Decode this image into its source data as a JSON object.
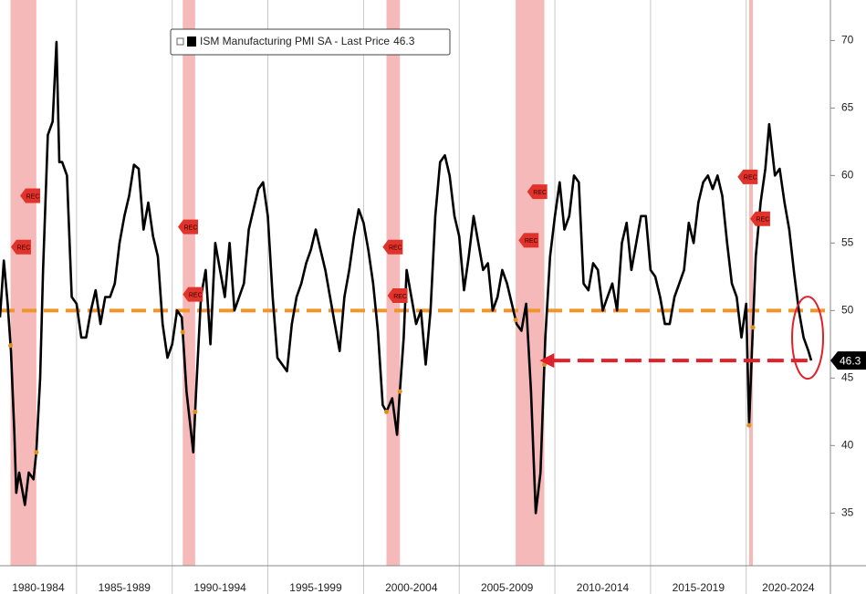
{
  "chart_data": {
    "type": "line",
    "legend_label": "ISM Manufacturing PMI SA - Last Price",
    "last_price": 46.3,
    "series": [
      {
        "name": "ISM Manufacturing PMI SA - Last Price",
        "color": "#000000",
        "x": [
          1981.0,
          1981.2,
          1981.4,
          1981.57,
          1981.75,
          1981.85,
          1982.0,
          1982.3,
          1982.5,
          1982.75,
          1982.9,
          1983.1,
          1983.25,
          1983.5,
          1983.75,
          1983.95,
          1984.1,
          1984.25,
          1984.5,
          1984.75,
          1985.0,
          1985.25,
          1985.5,
          1985.75,
          1986.0,
          1986.25,
          1986.5,
          1986.75,
          1987.0,
          1987.25,
          1987.5,
          1987.75,
          1988.0,
          1988.25,
          1988.5,
          1988.75,
          1989.0,
          1989.25,
          1989.5,
          1989.75,
          1990.0,
          1990.25,
          1990.5,
          1990.75,
          1991.1,
          1991.25,
          1991.5,
          1991.75,
          1992.0,
          1992.25,
          1992.5,
          1992.75,
          1993.0,
          1993.25,
          1993.5,
          1993.75,
          1994.0,
          1994.25,
          1994.5,
          1994.75,
          1995.0,
          1995.25,
          1995.5,
          1995.75,
          1996.0,
          1996.25,
          1996.5,
          1996.75,
          1997.0,
          1997.25,
          1997.5,
          1997.75,
          1998.0,
          1998.25,
          1998.5,
          1998.75,
          1999.0,
          1999.25,
          1999.5,
          1999.75,
          2000.0,
          2000.25,
          2000.5,
          2000.75,
          2001.0,
          2001.2,
          2001.5,
          2001.75,
          2001.9,
          2002.1,
          2002.25,
          2002.5,
          2002.75,
          2003.0,
          2003.25,
          2003.5,
          2003.75,
          2004.0,
          2004.25,
          2004.5,
          2004.75,
          2005.0,
          2005.25,
          2005.5,
          2005.75,
          2006.0,
          2006.25,
          2006.5,
          2006.75,
          2007.0,
          2007.25,
          2007.5,
          2007.75,
          2008.0,
          2008.25,
          2008.5,
          2008.75,
          2009.0,
          2009.25,
          2009.5,
          2009.75,
          2010.0,
          2010.25,
          2010.5,
          2010.75,
          2011.0,
          2011.25,
          2011.5,
          2011.75,
          2012.0,
          2012.25,
          2012.5,
          2012.75,
          2013.0,
          2013.25,
          2013.5,
          2013.75,
          2014.0,
          2014.25,
          2014.5,
          2014.75,
          2015.0,
          2015.25,
          2015.5,
          2015.75,
          2016.0,
          2016.25,
          2016.5,
          2016.75,
          2017.0,
          2017.25,
          2017.5,
          2017.75,
          2018.0,
          2018.25,
          2018.5,
          2018.75,
          2019.0,
          2019.25,
          2019.5,
          2019.75,
          2020.0,
          2020.15,
          2020.3,
          2020.5,
          2020.75,
          2021.0,
          2021.2,
          2021.5,
          2021.75,
          2022.0,
          2022.25,
          2022.5,
          2022.75,
          2023.0,
          2023.25,
          2023.4
        ],
        "values": [
          49.5,
          53.7,
          50.5,
          47,
          41,
          36.5,
          38,
          35.6,
          38,
          37.5,
          39.5,
          45,
          53,
          63,
          64,
          69.9,
          61,
          61,
          60,
          51,
          50.5,
          48,
          48,
          50,
          51.5,
          49,
          51,
          51,
          52,
          55,
          57,
          58.5,
          60.8,
          60.5,
          56,
          58,
          55.5,
          54,
          49,
          46.5,
          47.5,
          50,
          49.5,
          44,
          39.5,
          44,
          51,
          53,
          47.5,
          55,
          53,
          51,
          55,
          50,
          51,
          52,
          56,
          57.5,
          59,
          59.5,
          57,
          51,
          46.5,
          46,
          45.5,
          49,
          51,
          52,
          53.5,
          54.5,
          56,
          54.5,
          53,
          51,
          49,
          47,
          51,
          53,
          55.5,
          57.5,
          56.5,
          54.5,
          52,
          48.5,
          43,
          42.5,
          43.5,
          40.8,
          44,
          48,
          53,
          51,
          49,
          50,
          46,
          50,
          57,
          61,
          61.5,
          60,
          57,
          55.5,
          51.5,
          54,
          57,
          55,
          53,
          53.5,
          50,
          51,
          53,
          52,
          50.5,
          49,
          48.5,
          50.5,
          44,
          35,
          38,
          48,
          54,
          57,
          59.5,
          56,
          57,
          60,
          59.5,
          52,
          51.5,
          53.5,
          53,
          50,
          51,
          52,
          50,
          55,
          56.5,
          53,
          55,
          57,
          57,
          53,
          52.5,
          51,
          49,
          49,
          51,
          52,
          53,
          56.5,
          55,
          58,
          59.5,
          60,
          59,
          60,
          58.5,
          55,
          52,
          51,
          48,
          50.5,
          41.5,
          47,
          54,
          58,
          60.5,
          63.8,
          60,
          60.5,
          58,
          56,
          52.8,
          50,
          48,
          47,
          46.3
        ]
      }
    ],
    "xlim": [
      1981.0,
      2024.4
    ],
    "xticks": [
      1985,
      1990,
      1995,
      2000,
      2005,
      2010,
      2015,
      2020
    ],
    "x_period_labels": [
      "1980-1984",
      "1985-1989",
      "1990-1994",
      "1995-1999",
      "2000-2004",
      "2005-2009",
      "2010-2014",
      "2015-2019",
      "2020-2024"
    ],
    "ylim": [
      31.1,
      73.0
    ],
    "yticks": [
      35,
      40,
      45,
      50,
      55,
      60,
      65,
      70
    ],
    "reference_line": {
      "value": 50,
      "color": "#f0952a"
    },
    "arrow": {
      "y": 46.3,
      "x_from": 2023.2,
      "x_to": 2009.2,
      "color": "#e0202a"
    },
    "recessions": [
      {
        "start": 1981.55,
        "end": 1982.9
      },
      {
        "start": 1990.55,
        "end": 1991.2
      },
      {
        "start": 2001.2,
        "end": 2001.9
      },
      {
        "start": 2007.95,
        "end": 2009.45
      },
      {
        "start": 2020.15,
        "end": 2020.35
      }
    ],
    "recession_color": "#f6b9b9",
    "rec_label": "REC",
    "rec_tags": [
      {
        "x": 1981.57,
        "y": 54.7
      },
      {
        "x": 1982.05,
        "y": 58.5
      },
      {
        "x": 1990.3,
        "y": 56.2
      },
      {
        "x": 1990.55,
        "y": 51.2
      },
      {
        "x": 2001.0,
        "y": 54.7
      },
      {
        "x": 2001.25,
        "y": 51.1
      },
      {
        "x": 2008.1,
        "y": 55.2
      },
      {
        "x": 2008.55,
        "y": 58.8
      },
      {
        "x": 2019.55,
        "y": 59.9
      },
      {
        "x": 2020.2,
        "y": 56.8
      }
    ]
  }
}
